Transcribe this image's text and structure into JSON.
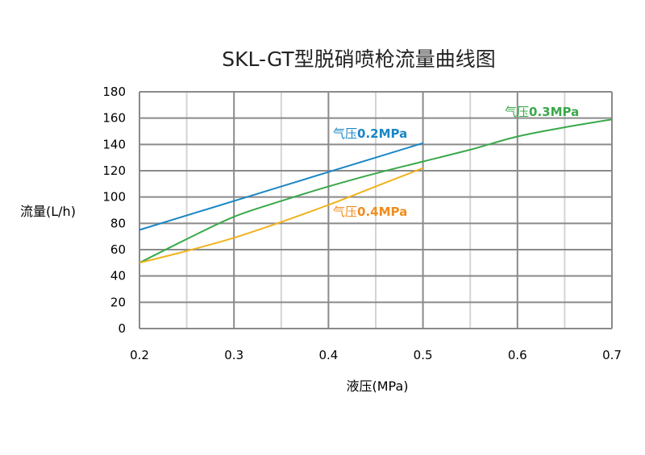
{
  "chart_data": {
    "type": "line",
    "title": "SKL-GT型脱硝喷枪流量曲线图",
    "xlabel": "液压(MPa)",
    "ylabel": "流量(L/h)",
    "xlim": [
      0.2,
      0.7
    ],
    "ylim": [
      0,
      180
    ],
    "x_ticks": [
      "0.2",
      "0.3",
      "0.4",
      "0.5",
      "0.6",
      "0.7"
    ],
    "y_ticks": [
      "0",
      "20",
      "40",
      "60",
      "80",
      "100",
      "120",
      "140",
      "160",
      "180"
    ],
    "grid": true,
    "series": [
      {
        "name": "气压0.2MPa",
        "name_prefix": "气压",
        "name_value": "0.2MPa",
        "color": "#1a86c4",
        "points": [
          [
            0.2,
            75
          ],
          [
            0.3,
            97
          ],
          [
            0.4,
            119
          ],
          [
            0.5,
            141
          ]
        ]
      },
      {
        "name": "气压0.3MPa",
        "name_prefix": "气压",
        "name_value": "0.3MPa",
        "color": "#3aa84a",
        "points": [
          [
            0.2,
            50
          ],
          [
            0.25,
            68
          ],
          [
            0.3,
            85
          ],
          [
            0.35,
            97
          ],
          [
            0.4,
            108
          ],
          [
            0.45,
            118
          ],
          [
            0.5,
            127
          ],
          [
            0.55,
            136
          ],
          [
            0.6,
            146
          ],
          [
            0.65,
            153
          ],
          [
            0.7,
            159
          ]
        ]
      },
      {
        "name": "气压0.4MPa",
        "name_prefix": "气压",
        "name_value": "0.4MPa",
        "color": "#f0b21e",
        "label_color": "#f08c1e",
        "points": [
          [
            0.2,
            50
          ],
          [
            0.25,
            59
          ],
          [
            0.3,
            69
          ],
          [
            0.35,
            81
          ],
          [
            0.4,
            94
          ],
          [
            0.45,
            108
          ],
          [
            0.5,
            122
          ]
        ]
      }
    ]
  }
}
